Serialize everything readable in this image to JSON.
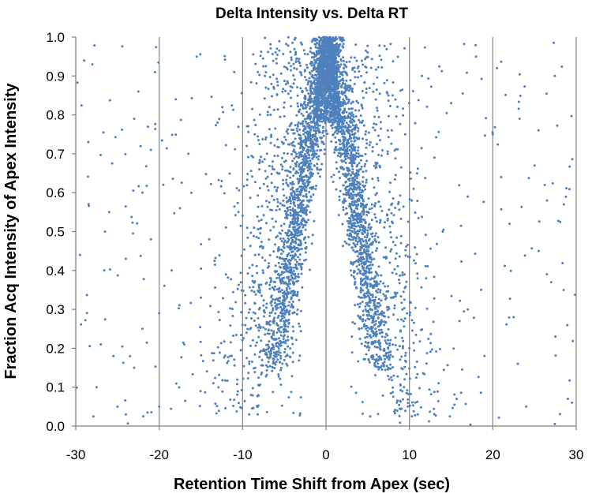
{
  "chart_data": {
    "type": "scatter",
    "title": "Delta Intensity vs. Delta RT",
    "xlabel": "Retention Time Shift from Apex (sec)",
    "ylabel": "Fraction Acq Intensity of Apex Intensity",
    "xlim": [
      -30,
      30
    ],
    "ylim": [
      0,
      1.0
    ],
    "x_ticks": [
      -30,
      -20,
      -10,
      0,
      10,
      20,
      30
    ],
    "y_ticks": [
      0.0,
      0.1,
      0.2,
      0.3,
      0.4,
      0.5,
      0.6,
      0.7,
      0.8,
      0.9,
      1.0
    ],
    "x_tick_labels": [
      "-30",
      "-20",
      "-10",
      "0",
      "10",
      "20",
      "30"
    ],
    "y_tick_labels": [
      "0.0",
      "0.1",
      "0.2",
      "0.3",
      "0.4",
      "0.5",
      "0.6",
      "0.7",
      "0.8",
      "0.9",
      "1.0"
    ],
    "vertical_gridlines": true,
    "horizontal_gridlines": false,
    "marker_color": "#4f81bd",
    "series": [
      {
        "name": "Delta Intensity vs Delta RT",
        "distribution": "V-shaped dense band: intensity fraction falls roughly linearly from 1.0 at 0 sec shift to about 0.15 at +/-6.5 sec, with sparse scattered outliers across -30 to 30 sec",
        "points": [
          [
            -29,
            0.94
          ],
          [
            -28,
            0.93
          ],
          [
            -28.5,
            0.73
          ],
          [
            -27.5,
            0.1
          ],
          [
            -29.5,
            0.44
          ],
          [
            -26.5,
            0.5
          ],
          [
            -26,
            0.55
          ],
          [
            -25,
            0.05
          ],
          [
            -24,
            0.03
          ],
          [
            -23,
            0.79
          ],
          [
            -22.5,
            0.86
          ],
          [
            -22,
            0.6
          ],
          [
            -21,
            0.71
          ],
          [
            -20.5,
            0.91
          ],
          [
            -22,
            0.25
          ],
          [
            -20,
            0.29
          ],
          [
            -21,
            0.48
          ],
          [
            -19.5,
            0.62
          ],
          [
            -24,
            0.43
          ],
          [
            -25.5,
            0.18
          ],
          [
            -23,
            0.15
          ],
          [
            -27,
            0.21
          ],
          [
            -20,
            0.05
          ],
          [
            -18.5,
            0.4
          ],
          [
            -18,
            0.84
          ],
          [
            -17.5,
            0.56
          ],
          [
            -17,
            0.21
          ],
          [
            -16.5,
            0.7
          ],
          [
            -15.5,
            0.95
          ],
          [
            -15,
            0.33
          ],
          [
            -14,
            0.48
          ],
          [
            -13.5,
            0.11
          ],
          [
            -13,
            0.78
          ],
          [
            -12.5,
            0.63
          ],
          [
            -12,
            0.39
          ],
          [
            -11.5,
            0.18
          ],
          [
            -11,
            0.91
          ],
          [
            -10.5,
            0.55
          ],
          [
            -10,
            0.26
          ],
          [
            -9.5,
            0.72
          ],
          [
            -9,
            0.08
          ],
          [
            -8.5,
            0.44
          ],
          [
            -8,
            0.66
          ],
          [
            -7.5,
            0.31
          ],
          [
            -7.2,
            0.87
          ],
          [
            29,
            0.07
          ],
          [
            28.5,
            0.35
          ],
          [
            27,
            0.37
          ],
          [
            26.5,
            0.58
          ],
          [
            25.5,
            0.45
          ],
          [
            24,
            0.05
          ],
          [
            23,
            0.16
          ],
          [
            22.5,
            0.28
          ],
          [
            22,
            0.52
          ],
          [
            21,
            0.64
          ],
          [
            20,
            0.75
          ],
          [
            20.5,
            0.92
          ],
          [
            19,
            0.18
          ],
          [
            18,
            0.95
          ],
          [
            17,
            0.59
          ],
          [
            16,
            0.27
          ],
          [
            15,
            0.83
          ],
          [
            14,
            0.5
          ],
          [
            13.5,
            0.11
          ],
          [
            13,
            0.69
          ],
          [
            12,
            0.38
          ],
          [
            11.5,
            0.9
          ],
          [
            11,
            0.03
          ],
          [
            10.5,
            0.61
          ],
          [
            10,
            0.2
          ],
          [
            9.5,
            0.75
          ],
          [
            9,
            0.47
          ],
          [
            8.5,
            0.06
          ],
          [
            8,
            0.85
          ],
          [
            7.8,
            0.33
          ],
          [
            25,
            0.67
          ],
          [
            27.5,
            0.23
          ],
          [
            29.5,
            0.06
          ]
        ]
      }
    ]
  }
}
